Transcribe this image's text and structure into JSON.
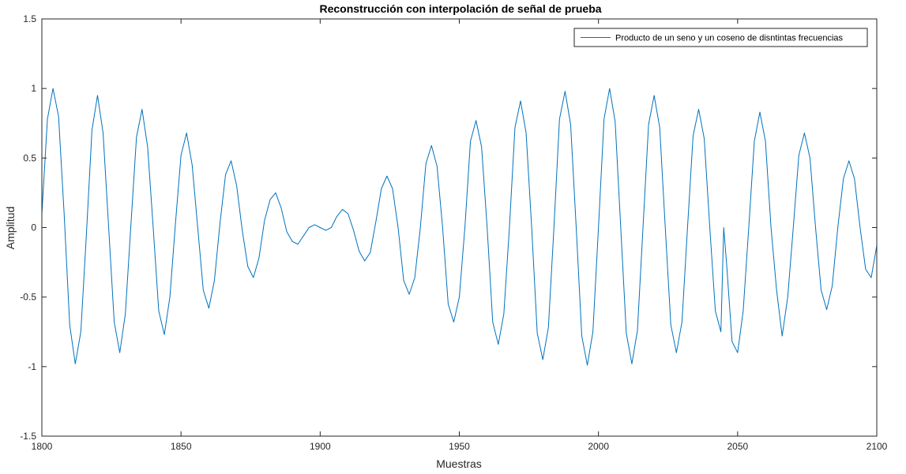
{
  "chart_data": {
    "type": "line",
    "title": "Reconstrucción con interpolación de señal de prueba",
    "xlabel": "Muestras",
    "ylabel": "Amplitud",
    "xlim": [
      1800,
      2100
    ],
    "ylim": [
      -1.5,
      1.5
    ],
    "xticks": [
      1800,
      1850,
      1900,
      1950,
      2000,
      2050,
      2100
    ],
    "xtick_labels": [
      "1800",
      "1850",
      "1900",
      "1950",
      "2000",
      "2050",
      "2100"
    ],
    "yticks": [
      1.5,
      1,
      0.5,
      0,
      -0.5,
      -1,
      -1.5
    ],
    "ytick_labels": [
      "1.5",
      "1",
      "0.5",
      "0",
      "-0.5",
      "-1",
      "-1.5"
    ],
    "grid": false,
    "legend_location": "top-right",
    "series": [
      {
        "name": "Producto de un seno y un coseno de disntintas frecuencias",
        "color": "#0072bd",
        "points": [
          [
            1800,
            0.1
          ],
          [
            1802,
            0.78
          ],
          [
            1804,
            1.0
          ],
          [
            1806,
            0.8
          ],
          [
            1808,
            0.1
          ],
          [
            1810,
            -0.7
          ],
          [
            1812,
            -0.98
          ],
          [
            1814,
            -0.75
          ],
          [
            1816,
            -0.05
          ],
          [
            1818,
            0.7
          ],
          [
            1820,
            0.95
          ],
          [
            1822,
            0.68
          ],
          [
            1824,
            0.0
          ],
          [
            1826,
            -0.68
          ],
          [
            1828,
            -0.9
          ],
          [
            1830,
            -0.62
          ],
          [
            1832,
            0.02
          ],
          [
            1834,
            0.65
          ],
          [
            1836,
            0.85
          ],
          [
            1838,
            0.58
          ],
          [
            1840,
            0.0
          ],
          [
            1842,
            -0.6
          ],
          [
            1844,
            -0.77
          ],
          [
            1846,
            -0.5
          ],
          [
            1848,
            0.03
          ],
          [
            1850,
            0.52
          ],
          [
            1852,
            0.68
          ],
          [
            1854,
            0.45
          ],
          [
            1856,
            0.0
          ],
          [
            1858,
            -0.45
          ],
          [
            1860,
            -0.58
          ],
          [
            1862,
            -0.38
          ],
          [
            1864,
            0.03
          ],
          [
            1866,
            0.38
          ],
          [
            1868,
            0.48
          ],
          [
            1870,
            0.3
          ],
          [
            1872,
            -0.02
          ],
          [
            1874,
            -0.28
          ],
          [
            1876,
            -0.36
          ],
          [
            1878,
            -0.22
          ],
          [
            1880,
            0.05
          ],
          [
            1882,
            0.2
          ],
          [
            1884,
            0.25
          ],
          [
            1886,
            0.14
          ],
          [
            1888,
            -0.03
          ],
          [
            1890,
            -0.1
          ],
          [
            1892,
            -0.12
          ],
          [
            1894,
            -0.06
          ],
          [
            1896,
            0.0
          ],
          [
            1898,
            0.02
          ],
          [
            1900,
            0.0
          ],
          [
            1902,
            -0.02
          ],
          [
            1904,
            0.0
          ],
          [
            1906,
            0.08
          ],
          [
            1908,
            0.13
          ],
          [
            1910,
            0.1
          ],
          [
            1912,
            -0.02
          ],
          [
            1914,
            -0.17
          ],
          [
            1916,
            -0.24
          ],
          [
            1918,
            -0.18
          ],
          [
            1920,
            0.04
          ],
          [
            1922,
            0.28
          ],
          [
            1924,
            0.37
          ],
          [
            1926,
            0.28
          ],
          [
            1928,
            0.0
          ],
          [
            1930,
            -0.38
          ],
          [
            1932,
            -0.48
          ],
          [
            1934,
            -0.36
          ],
          [
            1936,
            0.0
          ],
          [
            1938,
            0.46
          ],
          [
            1940,
            0.59
          ],
          [
            1942,
            0.44
          ],
          [
            1944,
            0.0
          ],
          [
            1946,
            -0.55
          ],
          [
            1948,
            -0.68
          ],
          [
            1950,
            -0.5
          ],
          [
            1952,
            0.0
          ],
          [
            1954,
            0.62
          ],
          [
            1956,
            0.77
          ],
          [
            1958,
            0.58
          ],
          [
            1960,
            0.0
          ],
          [
            1962,
            -0.68
          ],
          [
            1964,
            -0.84
          ],
          [
            1966,
            -0.62
          ],
          [
            1968,
            0.0
          ],
          [
            1970,
            0.72
          ],
          [
            1972,
            0.91
          ],
          [
            1974,
            0.68
          ],
          [
            1976,
            0.0
          ],
          [
            1978,
            -0.76
          ],
          [
            1980,
            -0.95
          ],
          [
            1982,
            -0.72
          ],
          [
            1984,
            0.0
          ],
          [
            1986,
            0.78
          ],
          [
            1988,
            0.98
          ],
          [
            1990,
            0.74
          ],
          [
            1992,
            0.0
          ],
          [
            1994,
            -0.78
          ],
          [
            1996,
            -0.99
          ],
          [
            1998,
            -0.75
          ],
          [
            2000,
            0.0
          ],
          [
            2002,
            0.78
          ],
          [
            2004,
            1.0
          ],
          [
            2006,
            0.76
          ],
          [
            2008,
            0.0
          ],
          [
            2010,
            -0.76
          ],
          [
            2012,
            -0.98
          ],
          [
            2014,
            -0.74
          ],
          [
            2016,
            0.0
          ],
          [
            2018,
            0.74
          ],
          [
            2020,
            0.95
          ],
          [
            2022,
            0.72
          ],
          [
            2024,
            0.0
          ],
          [
            2026,
            -0.7
          ],
          [
            2028,
            -0.9
          ],
          [
            2030,
            -0.68
          ],
          [
            2032,
            0.0
          ],
          [
            2034,
            0.66
          ],
          [
            2036,
            0.85
          ],
          [
            2038,
            0.64
          ],
          [
            2040,
            0.0
          ],
          [
            2042,
            -0.6
          ],
          [
            2044,
            -0.75
          ],
          [
            2045,
            0.0
          ],
          [
            2046,
            -0.25
          ],
          [
            2048,
            -0.82
          ],
          [
            2050,
            -0.9
          ],
          [
            2052,
            -0.6
          ],
          [
            2054,
            0.0
          ],
          [
            2056,
            0.62
          ],
          [
            2058,
            0.83
          ],
          [
            2060,
            0.62
          ],
          [
            2062,
            0.0
          ],
          [
            2064,
            -0.45
          ],
          [
            2066,
            -0.78
          ],
          [
            2068,
            -0.5
          ],
          [
            2070,
            0.0
          ],
          [
            2072,
            0.52
          ],
          [
            2074,
            0.68
          ],
          [
            2076,
            0.5
          ],
          [
            2078,
            0.0
          ],
          [
            2080,
            -0.45
          ],
          [
            2082,
            -0.59
          ],
          [
            2084,
            -0.42
          ],
          [
            2086,
            0.0
          ],
          [
            2088,
            0.35
          ],
          [
            2090,
            0.48
          ],
          [
            2092,
            0.35
          ],
          [
            2094,
            0.0
          ],
          [
            2096,
            -0.3
          ],
          [
            2098,
            -0.36
          ],
          [
            2100,
            -0.13
          ]
        ]
      }
    ]
  }
}
